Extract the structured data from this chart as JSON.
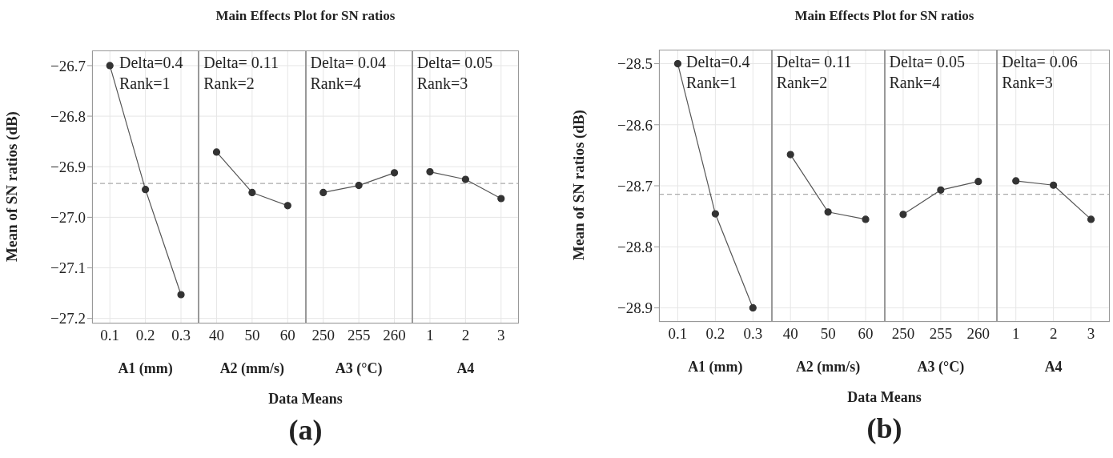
{
  "chart_data": [
    {
      "type": "line",
      "title": "Main Effects Plot for SN ratios",
      "ylabel": "Mean of SN ratios (dB)",
      "xlabel": "Data Means",
      "categories": [
        "0.1",
        "0.2",
        "0.3",
        "40",
        "50",
        "60",
        "250",
        "255",
        "260",
        "1",
        "2",
        "3"
      ],
      "series": [
        {
          "color": "#555555",
          "values": [
            -26.7,
            -26.945,
            -27.153,
            null,
            null,
            null,
            null,
            null,
            null,
            null,
            null,
            null
          ]
        },
        {
          "color": "#555555",
          "values": [
            null,
            null,
            null,
            -26.871,
            -26.951,
            -26.977,
            null,
            null,
            null,
            null,
            null,
            null
          ]
        },
        {
          "color": "#555555",
          "values": [
            null,
            null,
            null,
            null,
            null,
            null,
            -26.951,
            -26.937,
            -26.912,
            null,
            null,
            null
          ]
        },
        {
          "color": "#555555",
          "values": [
            null,
            null,
            null,
            null,
            null,
            null,
            null,
            null,
            null,
            -26.91,
            -26.925,
            -26.963
          ]
        }
      ],
      "marker": "circle",
      "grid": true,
      "ylim": [
        -27.21,
        -26.67
      ],
      "yticks": [
        -26.7,
        -26.8,
        -26.9,
        {
          "value": -27,
          "label": "−27.0"
        },
        -27.1,
        -27.2
      ],
      "ref_lines": [
        {
          "axis": "y",
          "value": -26.933,
          "color": "#aaaaaa",
          "line_style": "dashed"
        }
      ],
      "annotations": [
        "Delta=0.4",
        "Rank=1",
        "Delta= 0.11",
        "Rank=2",
        "Delta= 0.04",
        "Rank=4",
        "Delta= 0.05",
        "Rank=3",
        "A1 (mm)",
        "A2 (mm/s)",
        "A3 (°C)",
        "A4",
        "(a)"
      ]
    },
    {
      "type": "line",
      "title": "Main Effects Plot for SN ratios",
      "ylabel": "Mean of SN ratios (dB)",
      "xlabel": "Data Means",
      "categories": [
        "0.1",
        "0.2",
        "0.3",
        "40",
        "50",
        "60",
        "250",
        "255",
        "260",
        "1",
        "2",
        "3"
      ],
      "series": [
        {
          "color": "#555555",
          "values": [
            -28.5,
            -28.746,
            -28.9,
            null,
            null,
            null,
            null,
            null,
            null,
            null,
            null,
            null
          ]
        },
        {
          "color": "#555555",
          "values": [
            null,
            null,
            null,
            -28.649,
            -28.743,
            -28.755,
            null,
            null,
            null,
            null,
            null,
            null
          ]
        },
        {
          "color": "#555555",
          "values": [
            null,
            null,
            null,
            null,
            null,
            null,
            -28.747,
            -28.707,
            -28.693,
            null,
            null,
            null
          ]
        },
        {
          "color": "#555555",
          "values": [
            null,
            null,
            null,
            null,
            null,
            null,
            null,
            null,
            null,
            -28.692,
            -28.699,
            -28.755
          ]
        }
      ],
      "marker": "circle",
      "grid": true,
      "ylim": [
        -28.923,
        -28.477
      ],
      "yticks": [
        -28.5,
        -28.6,
        -28.7,
        -28.8,
        -28.9
      ],
      "ref_lines": [
        {
          "axis": "y",
          "value": -28.714,
          "color": "#aaaaaa",
          "line_style": "dashed"
        }
      ],
      "annotations": [
        "Delta=0.4",
        "Rank=1",
        "Delta= 0.11",
        "Rank=2",
        "Delta= 0.05",
        "Rank=4",
        "Delta= 0.06",
        "Rank=3",
        "A1 (mm)",
        "A2 (mm/s)",
        "A3 (°C)",
        "A4",
        "(b)"
      ]
    }
  ]
}
